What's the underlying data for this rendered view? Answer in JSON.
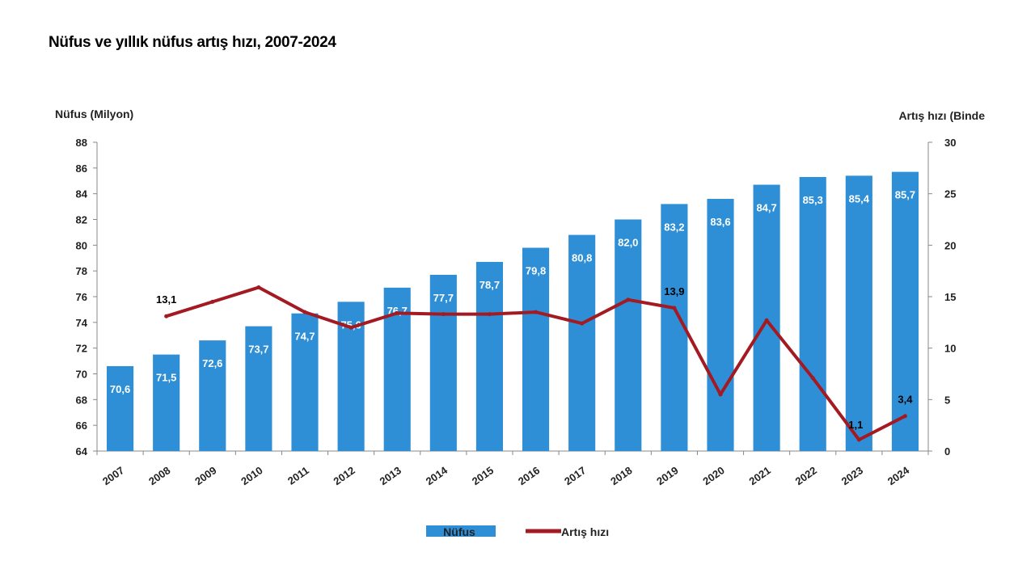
{
  "chart_data": {
    "type": "bar",
    "title": "Nüfus ve yıllık nüfus artış hızı, 2007-2024",
    "ylabel": "Nüfus (Milyon)",
    "y2label": "Artış hızı (Binde",
    "ylim": [
      64,
      88
    ],
    "yticks": [
      64,
      66,
      68,
      70,
      72,
      74,
      76,
      78,
      80,
      82,
      84,
      86,
      88
    ],
    "y2lim": [
      0,
      30
    ],
    "y2ticks": [
      0,
      5,
      10,
      15,
      20,
      25,
      30
    ],
    "grid": false,
    "legend_position": "bottom-center",
    "categories": [
      "2007",
      "2008",
      "2009",
      "2010",
      "2011",
      "2012",
      "2013",
      "2014",
      "2015",
      "2016",
      "2017",
      "2018",
      "2019",
      "2020",
      "2021",
      "2022",
      "2023",
      "2024"
    ],
    "series": [
      {
        "name": "Nüfus",
        "type": "bar",
        "axis": "left",
        "color": "#2e8fd6",
        "values": [
          70.6,
          71.5,
          72.6,
          73.7,
          74.7,
          75.6,
          76.7,
          77.7,
          78.7,
          79.8,
          80.8,
          82.0,
          83.2,
          83.6,
          84.7,
          85.3,
          85.4,
          85.7
        ],
        "labels": [
          "70,6",
          "71,5",
          "72,6",
          "73,7",
          "74,7",
          "75,6",
          "76,7",
          "77,7",
          "78,7",
          "79,8",
          "80,8",
          "82,0",
          "83,2",
          "83,6",
          "84,7",
          "85,3",
          "85,4",
          "85,7"
        ]
      },
      {
        "name": "Artış hızı",
        "type": "line",
        "axis": "right",
        "color": "#a31a22",
        "values": [
          null,
          13.1,
          14.5,
          15.9,
          13.5,
          12.0,
          13.4,
          13.3,
          13.3,
          13.5,
          12.4,
          14.7,
          13.9,
          5.5,
          12.7,
          7.1,
          1.1,
          3.4
        ],
        "point_labels": [
          {
            "index": 1,
            "text": "13,1"
          },
          {
            "index": 12,
            "text": "13,9"
          },
          {
            "index": 16,
            "text": "1,1"
          },
          {
            "index": 17,
            "text": "3,4"
          }
        ]
      }
    ]
  }
}
